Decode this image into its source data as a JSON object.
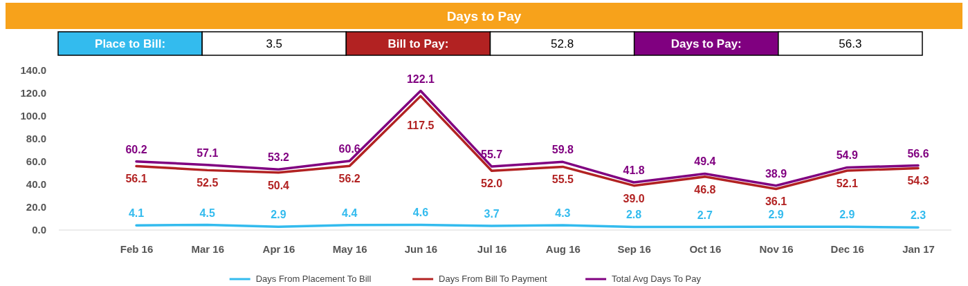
{
  "chart_data": {
    "type": "line",
    "title": "Days to Pay",
    "annotations": [
      "Place to Bill:",
      "3.5",
      "Bill to Pay:",
      "52.8",
      "Days to Pay:",
      "56.3"
    ],
    "categories": [
      "Feb 16",
      "Mar 16",
      "Apr 16",
      "May 16",
      "Jun 16",
      "Jul 16",
      "Aug 16",
      "Sep 16",
      "Oct 16",
      "Nov 16",
      "Dec 16",
      "Jan 17"
    ],
    "series": [
      {
        "name": "Days From Placement To Bill",
        "color": "#33bbee",
        "values": [
          4.1,
          4.5,
          2.9,
          4.4,
          4.6,
          3.7,
          4.3,
          2.8,
          2.7,
          2.9,
          2.9,
          2.3
        ],
        "value_labels": [
          "4.1",
          "4.5",
          "2.9",
          "4.4",
          "4.6",
          "3.7",
          "4.3",
          "2.8",
          "2.7",
          "2.9",
          "2.9",
          "2.3"
        ]
      },
      {
        "name": "Days From Bill To Payment",
        "color": "#b22222",
        "values": [
          56.1,
          52.5,
          50.4,
          56.2,
          117.5,
          52.0,
          55.5,
          39.0,
          46.8,
          36.1,
          52.1,
          54.3
        ],
        "value_labels": [
          "56.1",
          "52.5",
          "50.4",
          "56.2",
          "117.5",
          "52.0",
          "55.5",
          "39.0",
          "46.8",
          "36.1",
          "52.1",
          "54.3"
        ]
      },
      {
        "name": "Total Avg Days To Pay",
        "color": "#800080",
        "values": [
          60.2,
          57.1,
          53.2,
          60.6,
          122.1,
          55.7,
          59.8,
          41.8,
          49.4,
          38.9,
          54.9,
          56.6
        ],
        "value_labels": [
          "60.2",
          "57.1",
          "53.2",
          "60.6",
          "122.1",
          "55.7",
          "59.8",
          "41.8",
          "49.4",
          "38.9",
          "54.9",
          "56.6"
        ]
      }
    ],
    "ylim": [
      0,
      140
    ],
    "yticks": [
      {
        "value": 0,
        "label": "0.0"
      },
      {
        "value": 20,
        "label": "20.0"
      },
      {
        "value": 40,
        "label": "40.0"
      },
      {
        "value": 60,
        "label": "60.0"
      },
      {
        "value": 80,
        "label": "80.0"
      },
      {
        "value": 100,
        "label": "100.0"
      },
      {
        "value": 120,
        "label": "120.0"
      },
      {
        "value": 140,
        "label": "140.0"
      }
    ],
    "data_labels": true,
    "legend": "bottom",
    "marker": "none",
    "line_style": "solid",
    "grid": false
  }
}
